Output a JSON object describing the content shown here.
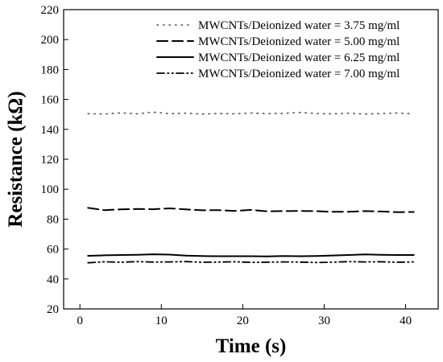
{
  "chart_data": {
    "type": "line",
    "title": "",
    "xlabel": "Time (s)",
    "ylabel": "Resistance (kΩ)",
    "xlim": [
      -2,
      44
    ],
    "ylim": [
      20,
      220
    ],
    "xticks": [
      0,
      10,
      20,
      30,
      40
    ],
    "yticks": [
      20,
      40,
      60,
      80,
      100,
      120,
      140,
      160,
      180,
      200,
      220
    ],
    "grid": false,
    "legend_position": "top-right",
    "x": [
      1,
      3,
      5,
      7,
      9,
      11,
      13,
      15,
      17,
      19,
      21,
      23,
      25,
      27,
      29,
      31,
      33,
      35,
      37,
      39,
      41
    ],
    "series": [
      {
        "name": "MWCNTs/Deionized water = 3.75 mg/ml",
        "style": "dotted",
        "color": "#555555",
        "values": [
          150.5,
          150.2,
          151,
          150.4,
          151.5,
          150.5,
          150.8,
          150.2,
          150.6,
          150.4,
          150.9,
          150.5,
          150.7,
          151.3,
          150.6,
          150.4,
          150.8,
          150.2,
          150.6,
          150.9,
          150.4
        ]
      },
      {
        "name": "MWCNTs/Deionized water = 5.00 mg/ml",
        "style": "long-dash",
        "color": "#000000",
        "values": [
          87.5,
          86,
          86.5,
          86.8,
          86.6,
          87.2,
          86.5,
          85.9,
          86,
          85.5,
          86.2,
          85.2,
          85.4,
          85.5,
          85.3,
          84.9,
          84.9,
          85.4,
          85.1,
          84.7,
          84.8
        ]
      },
      {
        "name": "MWCNTs/Deionized water = 6.25 mg/ml",
        "style": "solid",
        "color": "#000000",
        "values": [
          55.5,
          55.8,
          56,
          56.2,
          56.5,
          56.3,
          55.6,
          55.3,
          55.2,
          55.2,
          55.2,
          55.1,
          55.3,
          55.2,
          55.4,
          55.7,
          56,
          56.4,
          56.2,
          56,
          56
        ]
      },
      {
        "name": "MWCNTs/Deionized water = 7.00 mg/ml",
        "style": "dash-dot-dot",
        "color": "#000000",
        "values": [
          50.8,
          51.5,
          51.2,
          51.6,
          51.3,
          51.4,
          51.6,
          51.2,
          51.3,
          51.5,
          51.1,
          51.2,
          51.4,
          51.3,
          51,
          51.2,
          51.6,
          51.4,
          51.5,
          51.2,
          51.4
        ]
      }
    ]
  }
}
